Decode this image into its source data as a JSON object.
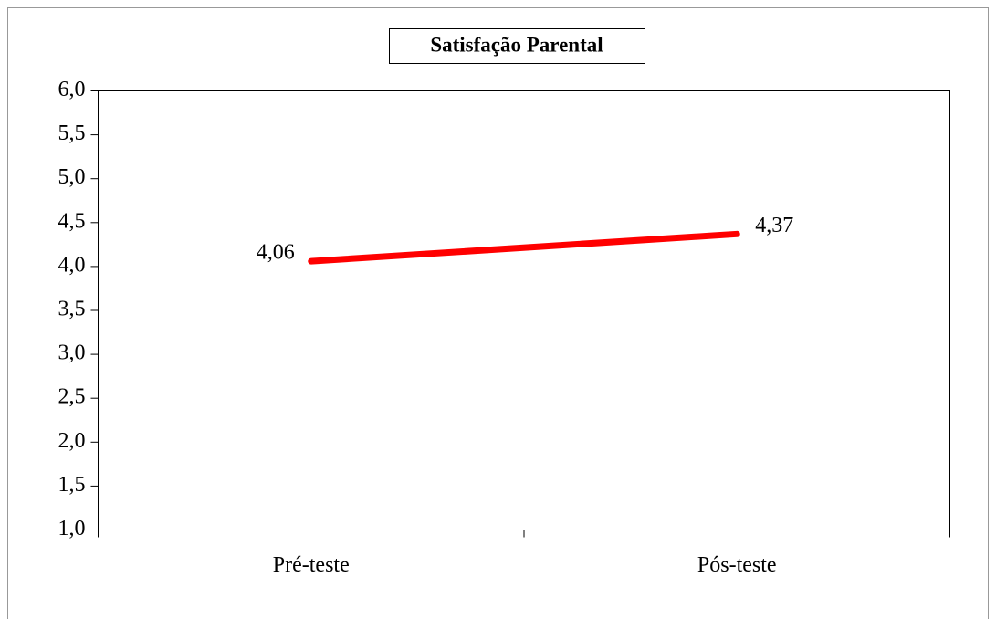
{
  "chart_data": {
    "type": "line",
    "title": "Satisfação Parental",
    "categories": [
      "Pré-teste",
      "Pós-teste"
    ],
    "values": [
      4.06,
      4.37
    ],
    "value_labels": [
      "4,06",
      "4,37"
    ],
    "color": "#ff0000",
    "ylim": [
      1,
      6
    ],
    "yticks": [
      {
        "value": 1,
        "label": "1,0"
      },
      {
        "value": 1.5,
        "label": "1,5"
      },
      {
        "value": 2,
        "label": "2,0"
      },
      {
        "value": 2.5,
        "label": "2,5"
      },
      {
        "value": 3,
        "label": "3,0"
      },
      {
        "value": 3.5,
        "label": "3,5"
      },
      {
        "value": 4,
        "label": "4,0"
      },
      {
        "value": 4.5,
        "label": "4,5"
      },
      {
        "value": 5,
        "label": "5,0"
      },
      {
        "value": 5.5,
        "label": "5,5"
      },
      {
        "value": 6,
        "label": "6,0"
      }
    ],
    "grid": false
  }
}
